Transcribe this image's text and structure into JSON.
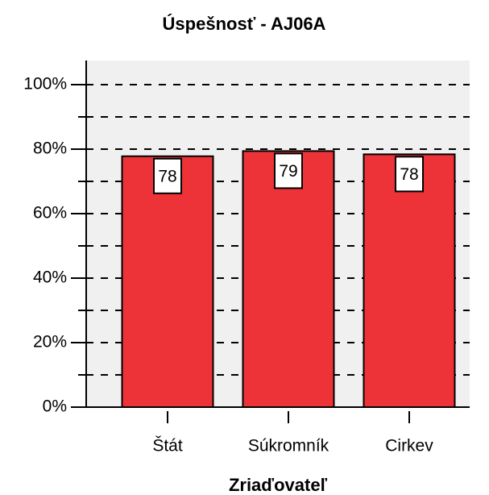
{
  "chart_data": {
    "type": "bar",
    "title": "Úspešnosť - AJ06A",
    "x_label": "Zriaďovateľ",
    "categories": [
      "Štát",
      "Súkromník",
      "Cirkev"
    ],
    "values": [
      77.8,
      79.4,
      78.4
    ],
    "value_labels": [
      "78",
      "79",
      "78"
    ],
    "color": "#ee3338",
    "ylim": [
      0,
      107.5
    ],
    "yticks": [
      {
        "value": 0,
        "label": "0%"
      },
      {
        "value": 20,
        "label": "20%"
      },
      {
        "value": 40,
        "label": "40%"
      },
      {
        "value": 60,
        "label": "60%"
      },
      {
        "value": 80,
        "label": "80%"
      },
      {
        "value": 100,
        "label": "100%"
      }
    ],
    "minor_yticks": [
      10,
      30,
      50,
      70,
      90
    ],
    "grid": true
  }
}
